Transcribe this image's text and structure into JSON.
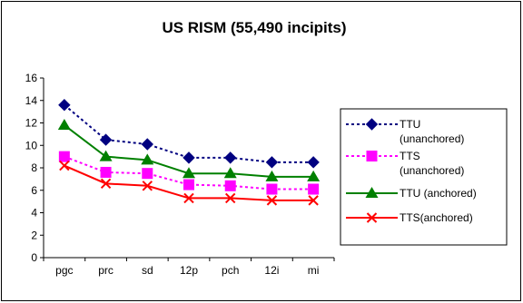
{
  "chart_data": {
    "type": "line",
    "title": "US RISM (55,490 incipits)",
    "categories": [
      "pgc",
      "prc",
      "sd",
      "12p",
      "pch",
      "12i",
      "mi"
    ],
    "ylim": [
      0,
      16
    ],
    "yticks": [
      "0",
      "2",
      "4",
      "6",
      "8",
      "10",
      "12",
      "14",
      "16"
    ],
    "grid": false,
    "legend": "right",
    "series": [
      {
        "name": "TTU (unanchored)",
        "legend_lines": [
          "TTU",
          "(unanchored)"
        ],
        "values": [
          13.6,
          10.5,
          10.1,
          8.9,
          8.9,
          8.5,
          8.5
        ],
        "color": "#000080",
        "dash": "dotted",
        "marker": "diamond"
      },
      {
        "name": "TTS (unanchored)",
        "legend_lines": [
          "TTS",
          "(unanchored)"
        ],
        "values": [
          9.0,
          7.6,
          7.5,
          6.5,
          6.4,
          6.1,
          6.1
        ],
        "color": "#ff00ff",
        "dash": "dotted",
        "marker": "square"
      },
      {
        "name": "TTU (anchored)",
        "legend_lines": [
          "TTU (anchored)"
        ],
        "values": [
          11.8,
          9.0,
          8.7,
          7.5,
          7.5,
          7.2,
          7.2
        ],
        "color": "#008000",
        "dash": "solid",
        "marker": "triangle"
      },
      {
        "name": "TTS(anchored)",
        "legend_lines": [
          "TTS(anchored)"
        ],
        "values": [
          8.2,
          6.6,
          6.4,
          5.3,
          5.3,
          5.1,
          5.1
        ],
        "color": "#ff0000",
        "dash": "solid",
        "marker": "x"
      }
    ]
  }
}
